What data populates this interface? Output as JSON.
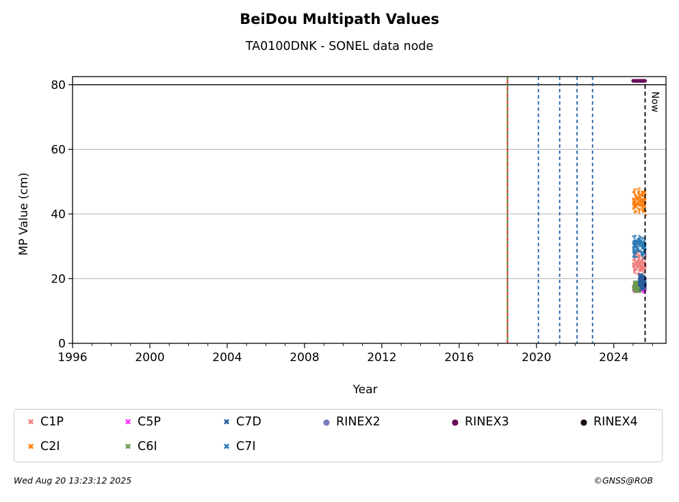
{
  "chart_data": {
    "type": "scatter",
    "title": "BeiDou Multipath Values",
    "subtitle": "TA0100DNK - SONEL data node",
    "xlabel": "Year",
    "ylabel": "MP Value (cm)",
    "xlim": [
      1996,
      2026.7
    ],
    "ylim": [
      0,
      82.5
    ],
    "x_ticks": [
      1996,
      2000,
      2004,
      2008,
      2012,
      2016,
      2020,
      2024
    ],
    "y_ticks": [
      0,
      20,
      40,
      60,
      80
    ],
    "grid": "horizontal",
    "reference_line_y": 80,
    "vertical_lines": [
      {
        "x": 2018.5,
        "style": "solid",
        "color": "#d62728",
        "overlay": "#2ca02c"
      },
      {
        "x": 2020.1,
        "style": "dashed",
        "color": "#1f5fa8"
      },
      {
        "x": 2021.2,
        "style": "dashed",
        "color": "#1f5fa8"
      },
      {
        "x": 2022.1,
        "style": "dashed",
        "color": "#1f5fa8"
      },
      {
        "x": 2022.9,
        "style": "dashed",
        "color": "#1f5fa8"
      }
    ],
    "now_line": {
      "x": 2025.62,
      "label": "Now"
    },
    "series": [
      {
        "name": "C1P",
        "color": "#f08080",
        "marker": "x",
        "x_range": [
          2025.0,
          2025.65
        ],
        "y_center": 25,
        "y_spread": 3
      },
      {
        "name": "C2I",
        "color": "#ff7f0e",
        "marker": "x",
        "x_range": [
          2025.0,
          2025.65
        ],
        "y_center": 44,
        "y_spread": 3.5
      },
      {
        "name": "C5P",
        "color": "#ff33ff",
        "marker": "x",
        "x_range": [
          2025.0,
          2025.65
        ],
        "y_center": 17,
        "y_spread": 1
      },
      {
        "name": "C6I",
        "color": "#6a994e",
        "marker": "x",
        "x_range": [
          2025.0,
          2025.5
        ],
        "y_center": 17.5,
        "y_spread": 1.5
      },
      {
        "name": "C7D",
        "color": "#2a5d9f",
        "marker": "x",
        "x_range": [
          2025.3,
          2025.65
        ],
        "y_center": 19,
        "y_spread": 2
      },
      {
        "name": "C7I",
        "color": "#2c7bb6",
        "marker": "x",
        "x_range": [
          2025.0,
          2025.65
        ],
        "y_center": 30,
        "y_spread": 3
      },
      {
        "name": "RINEX2",
        "color": "#7b7bc4",
        "marker": "o",
        "x_range": [],
        "y_center": null,
        "y_spread": 0
      },
      {
        "name": "RINEX3",
        "color": "#6b0f5c",
        "marker": "o",
        "x_range": [
          2025.0,
          2025.62
        ],
        "y_center": 81.2,
        "y_spread": 0
      },
      {
        "name": "RINEX4",
        "color": "#1a0a1a",
        "marker": "o",
        "x_range": [],
        "y_center": null,
        "y_spread": 0
      }
    ]
  },
  "legend": {
    "items": [
      {
        "label": "C1P",
        "color": "#f08080",
        "glyph": "✖"
      },
      {
        "label": "C5P",
        "color": "#ff33ff",
        "glyph": "✖"
      },
      {
        "label": "C7D",
        "color": "#2a5d9f",
        "glyph": "✖"
      },
      {
        "label": "RINEX2",
        "color": "#7b7bc4",
        "glyph": "●"
      },
      {
        "label": "RINEX3",
        "color": "#6b0f5c",
        "glyph": "●"
      },
      {
        "label": "RINEX4",
        "color": "#1a0a1a",
        "glyph": "●"
      },
      {
        "label": "C2I",
        "color": "#ff7f0e",
        "glyph": "✖"
      },
      {
        "label": "C6I",
        "color": "#6a994e",
        "glyph": "✖"
      },
      {
        "label": "C7I",
        "color": "#2c7bb6",
        "glyph": "✖"
      }
    ]
  },
  "footer": {
    "timestamp": "Wed Aug 20 13:23:12 2025",
    "credit": "©GNSS@ROB"
  }
}
